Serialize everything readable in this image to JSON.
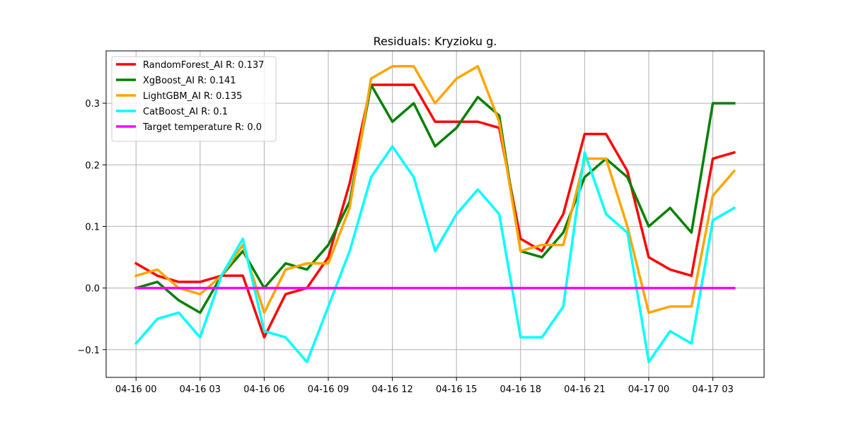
{
  "chart_data": {
    "type": "line",
    "title": "Residuals: Kryzioku g.",
    "xlabel": "",
    "ylabel": "",
    "x_tick_labels": [
      "04-16 00",
      "04-16 03",
      "04-16 06",
      "04-16 09",
      "04-16 12",
      "04-16 15",
      "04-16 18",
      "04-16 21",
      "04-17 00",
      "04-17 03"
    ],
    "y_tick_labels": [
      "−0.1",
      "0.0",
      "0.1",
      "0.2",
      "0.3"
    ],
    "y_ticks": [
      -0.1,
      0.0,
      0.1,
      0.2,
      0.3
    ],
    "ylim": [
      -0.145,
      0.385
    ],
    "xlim_hours": [
      -1.4,
      29.4
    ],
    "grid": true,
    "legend_position": "top-left",
    "x": [
      "04-16 00:00",
      "04-16 01:00",
      "04-16 02:00",
      "04-16 03:00",
      "04-16 04:00",
      "04-16 05:00",
      "04-16 06:00",
      "04-16 07:00",
      "04-16 08:00",
      "04-16 09:00",
      "04-16 10:00",
      "04-16 11:00",
      "04-16 12:00",
      "04-16 13:00",
      "04-16 14:00",
      "04-16 15:00",
      "04-16 16:00",
      "04-16 17:00",
      "04-16 18:00",
      "04-16 19:00",
      "04-16 20:00",
      "04-16 21:00",
      "04-16 22:00",
      "04-16 23:00",
      "04-17 00:00",
      "04-17 01:00",
      "04-17 02:00",
      "04-17 03:00",
      "04-17 04:00"
    ],
    "series": [
      {
        "name": "RandomForest_AI R: 0.137",
        "color": "#ff0000",
        "values": [
          0.04,
          0.02,
          0.01,
          0.01,
          0.02,
          0.02,
          -0.08,
          -0.01,
          0.0,
          0.05,
          0.17,
          0.33,
          0.33,
          0.33,
          0.27,
          0.27,
          0.27,
          0.26,
          0.08,
          0.06,
          0.12,
          0.25,
          0.25,
          0.19,
          0.05,
          0.03,
          0.02,
          0.21,
          0.22
        ]
      },
      {
        "name": "XgBoost_AI R: 0.141",
        "color": "#008000",
        "values": [
          0.0,
          0.01,
          -0.02,
          -0.04,
          0.02,
          0.06,
          0.0,
          0.04,
          0.03,
          0.07,
          0.14,
          0.33,
          0.27,
          0.3,
          0.23,
          0.26,
          0.31,
          0.28,
          0.06,
          0.05,
          0.09,
          0.18,
          0.21,
          0.18,
          0.1,
          0.13,
          0.09,
          0.3,
          0.3
        ]
      },
      {
        "name": "LightGBM_AI R: 0.135",
        "color": "#ffa500",
        "values": [
          0.02,
          0.03,
          0.0,
          -0.01,
          0.02,
          0.07,
          -0.04,
          0.03,
          0.04,
          0.04,
          0.13,
          0.34,
          0.36,
          0.36,
          0.3,
          0.34,
          0.36,
          0.27,
          0.06,
          0.07,
          0.07,
          0.21,
          0.21,
          0.1,
          -0.04,
          -0.03,
          -0.03,
          0.15,
          0.19
        ]
      },
      {
        "name": "CatBoost_AI R: 0.1",
        "color": "#00ffff",
        "values": [
          -0.09,
          -0.05,
          -0.04,
          -0.08,
          0.02,
          0.08,
          -0.07,
          -0.08,
          -0.12,
          -0.03,
          0.06,
          0.18,
          0.23,
          0.18,
          0.06,
          0.12,
          0.16,
          0.12,
          -0.08,
          -0.08,
          -0.03,
          0.22,
          0.12,
          0.09,
          -0.12,
          -0.07,
          -0.09,
          0.11,
          0.13
        ]
      },
      {
        "name": "Target temperature R: 0.0",
        "color": "#ff00ff",
        "values": [
          0,
          0,
          0,
          0,
          0,
          0,
          0,
          0,
          0,
          0,
          0,
          0,
          0,
          0,
          0,
          0,
          0,
          0,
          0,
          0,
          0,
          0,
          0,
          0,
          0,
          0,
          0,
          0,
          0
        ]
      }
    ]
  }
}
